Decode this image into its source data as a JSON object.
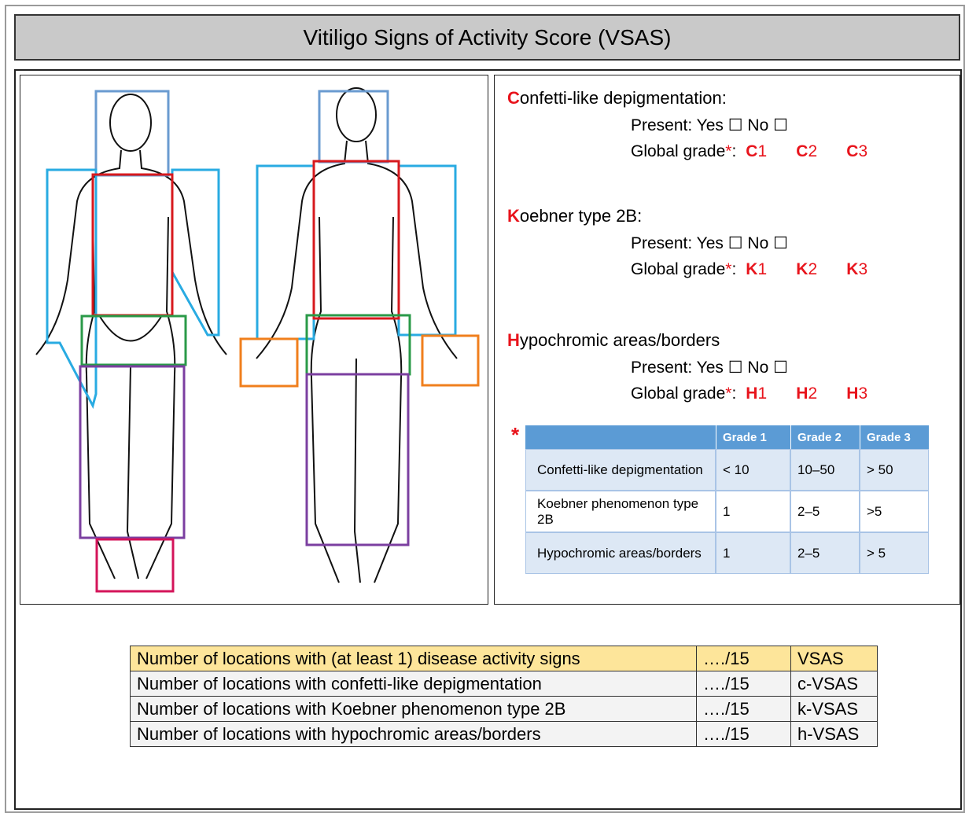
{
  "header": {
    "title": "Vitiligo Signs of Activity Score (VSAS)"
  },
  "signs": [
    {
      "initial": "C",
      "heading": "onfetti-like depigmentation:",
      "present": "Present: Yes ☐ No ☐",
      "grade_label": "Global grade",
      "grade_mark": "*",
      "grade_colon": ":",
      "grades": [
        {
          "letter": "C",
          "number": "1"
        },
        {
          "letter": "C",
          "number": "2"
        },
        {
          "letter": "C",
          "number": "3"
        }
      ]
    },
    {
      "initial": "K",
      "heading": "oebner type 2B:",
      "present": "Present: Yes ☐ No ☐",
      "grade_label": "Global grade",
      "grade_mark": "*",
      "grade_colon": ":",
      "grades": [
        {
          "letter": "K",
          "number": "1"
        },
        {
          "letter": "K",
          "number": "2"
        },
        {
          "letter": "K",
          "number": "3"
        }
      ]
    },
    {
      "initial": "H",
      "heading": "ypochromic areas/borders",
      "present": "Present: Yes ☐ No ☐",
      "grade_label": "Global grade",
      "grade_mark": "*",
      "grade_colon": ":",
      "grades": [
        {
          "letter": "H",
          "number": "1"
        },
        {
          "letter": "H",
          "number": "2"
        },
        {
          "letter": "H",
          "number": "3"
        }
      ]
    }
  ],
  "grade_table": {
    "marker": "*",
    "header": [
      "Grade 1",
      "Grade 2",
      "Grade 3"
    ],
    "rows": [
      [
        "Confetti-like depigmentation",
        "< 10",
        "10–50",
        "> 50"
      ],
      [
        "Koebner phenomenon type 2B",
        "1",
        "2–5",
        ">5"
      ],
      [
        "Hypochromic areas/borders",
        "1",
        "2–5",
        "> 5"
      ]
    ]
  },
  "summary_table": {
    "rows": [
      [
        "Number of locations with (at least 1) disease activity signs",
        "…./15",
        "VSAS"
      ],
      [
        "Number of locations with confetti-like depigmentation",
        "…./15",
        "c-VSAS"
      ],
      [
        "Number of locations with Koebner phenomenon type 2B",
        "…./15",
        "k-VSAS"
      ],
      [
        "Number of locations with hypochromic areas/borders",
        "…./15",
        "h-VSAS"
      ]
    ]
  }
}
